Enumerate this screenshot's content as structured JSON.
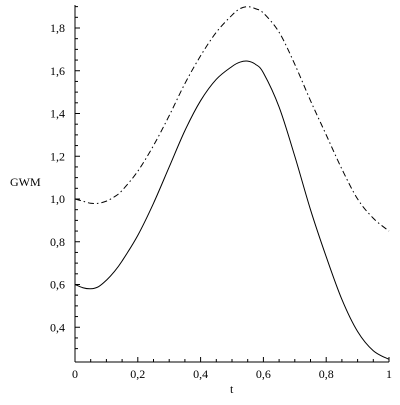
{
  "chart_data": {
    "type": "line",
    "title": "",
    "xlabel": "t",
    "ylabel": "GWM",
    "xlim": [
      0,
      1
    ],
    "ylim": [
      0.24,
      1.9
    ],
    "grid": false,
    "x_ticks": [
      0,
      0.2,
      0.4,
      0.6,
      0.8,
      1
    ],
    "x_tick_labels": [
      "0",
      "0,2",
      "0,4",
      "0,6",
      "0,8",
      "1"
    ],
    "y_ticks": [
      0.4,
      0.6,
      0.8,
      1.0,
      1.2,
      1.4,
      1.6,
      1.8
    ],
    "y_tick_labels": [
      "0,4",
      "0,6",
      "0,8",
      "1,0",
      "1,2",
      "1,4",
      "1,6",
      "1,8"
    ],
    "series": [
      {
        "style": "dash-dot",
        "color": "#000000",
        "x": [
          0,
          0.025,
          0.05,
          0.075,
          0.1,
          0.125,
          0.15,
          0.2,
          0.25,
          0.3,
          0.35,
          0.4,
          0.45,
          0.5,
          0.525,
          0.55,
          0.575,
          0.6,
          0.65,
          0.7,
          0.75,
          0.8,
          0.85,
          0.9,
          0.95,
          1.0
        ],
        "y": [
          1.0,
          0.99,
          0.98,
          0.98,
          0.99,
          1.01,
          1.04,
          1.13,
          1.25,
          1.39,
          1.54,
          1.67,
          1.78,
          1.86,
          1.89,
          1.9,
          1.89,
          1.87,
          1.78,
          1.63,
          1.46,
          1.3,
          1.14,
          1.0,
          0.91,
          0.85
        ]
      },
      {
        "style": "solid",
        "color": "#000000",
        "x": [
          0,
          0.025,
          0.05,
          0.075,
          0.1,
          0.125,
          0.15,
          0.2,
          0.25,
          0.3,
          0.35,
          0.4,
          0.45,
          0.5,
          0.525,
          0.55,
          0.575,
          0.6,
          0.65,
          0.7,
          0.75,
          0.8,
          0.85,
          0.9,
          0.95,
          1.0
        ],
        "y": [
          0.6,
          0.585,
          0.58,
          0.59,
          0.62,
          0.66,
          0.71,
          0.83,
          0.98,
          1.15,
          1.32,
          1.46,
          1.56,
          1.62,
          1.64,
          1.645,
          1.63,
          1.59,
          1.43,
          1.2,
          0.95,
          0.73,
          0.53,
          0.38,
          0.29,
          0.25
        ]
      }
    ]
  }
}
